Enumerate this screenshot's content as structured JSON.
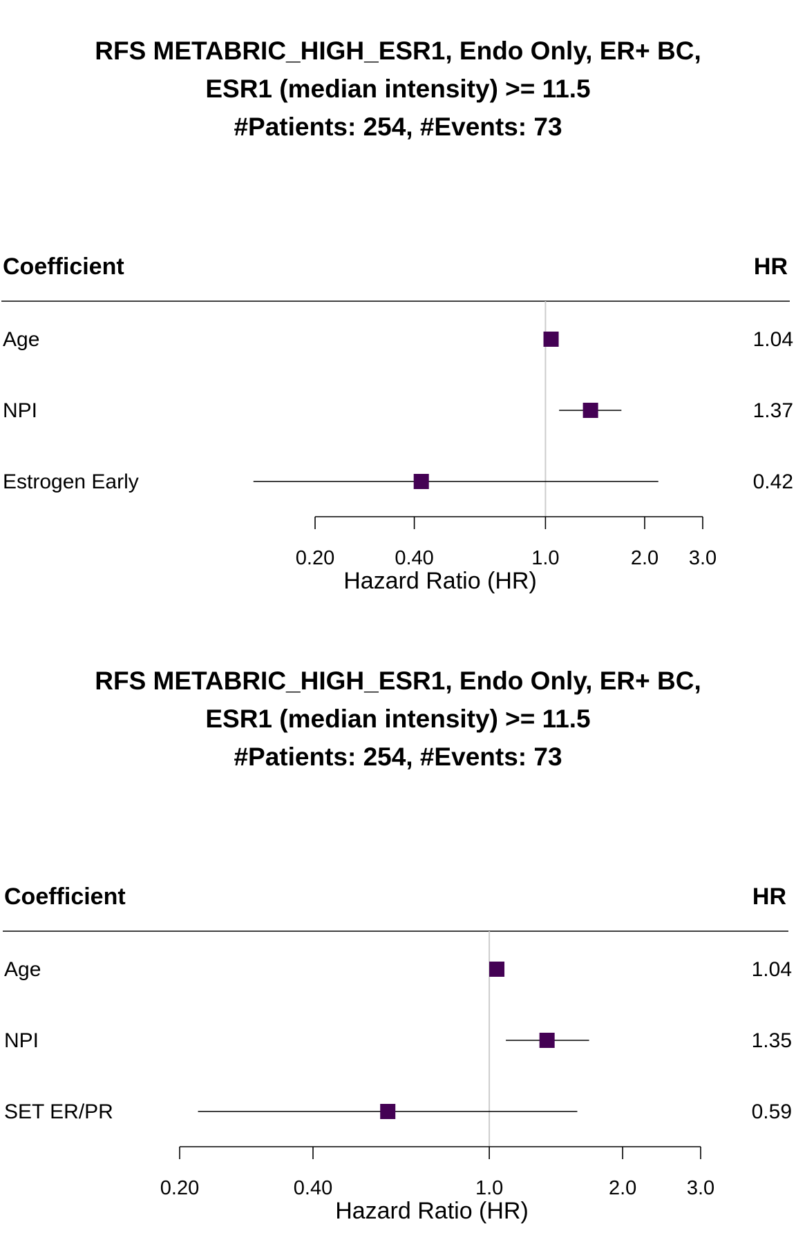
{
  "colors": {
    "marker": "#440154",
    "line": "#000000",
    "ref_line": "#cccccc"
  },
  "chart_data": [
    {
      "type": "forest",
      "title": [
        "RFS METABRIC_HIGH_ESR1, Endo Only, ER+ BC,",
        "ESR1 (median intensity) >= 11.5",
        "#Patients: 254, #Events: 73"
      ],
      "column_headers": {
        "label": "Coefficient",
        "value": "HR"
      },
      "xlabel": "Hazard Ratio (HR)",
      "x_scale": "log",
      "ticks": [
        0.2,
        0.4,
        1.0,
        2.0,
        3.0
      ],
      "tick_labels": [
        "0.20",
        "0.40",
        "1.0",
        "2.0",
        "3.0"
      ],
      "reference_line": 1.0,
      "rows": [
        {
          "label": "Age",
          "hr": 1.04,
          "hr_label": "1.04",
          "ci_low": 1.02,
          "ci_high": 1.06
        },
        {
          "label": "NPI",
          "hr": 1.37,
          "hr_label": "1.37",
          "ci_low": 1.1,
          "ci_high": 1.7
        },
        {
          "label": "Estrogen Early",
          "hr": 0.42,
          "hr_label": "0.42",
          "ci_low": 0.13,
          "ci_high": 2.2
        }
      ]
    },
    {
      "type": "forest",
      "title": [
        "RFS METABRIC_HIGH_ESR1, Endo Only, ER+ BC,",
        "ESR1 (median intensity) >= 11.5",
        "#Patients: 254, #Events: 73"
      ],
      "column_headers": {
        "label": "Coefficient",
        "value": "HR"
      },
      "xlabel": "Hazard Ratio (HR)",
      "x_scale": "log",
      "ticks": [
        0.2,
        0.4,
        1.0,
        2.0,
        3.0
      ],
      "tick_labels": [
        "0.20",
        "0.40",
        "1.0",
        "2.0",
        "3.0"
      ],
      "reference_line": 1.0,
      "rows": [
        {
          "label": "Age",
          "hr": 1.04,
          "hr_label": "1.04",
          "ci_low": 1.02,
          "ci_high": 1.06
        },
        {
          "label": "NPI",
          "hr": 1.35,
          "hr_label": "1.35",
          "ci_low": 1.09,
          "ci_high": 1.68
        },
        {
          "label": "SET ER/PR",
          "hr": 0.59,
          "hr_label": "0.59",
          "ci_low": 0.22,
          "ci_high": 1.58
        }
      ]
    }
  ]
}
